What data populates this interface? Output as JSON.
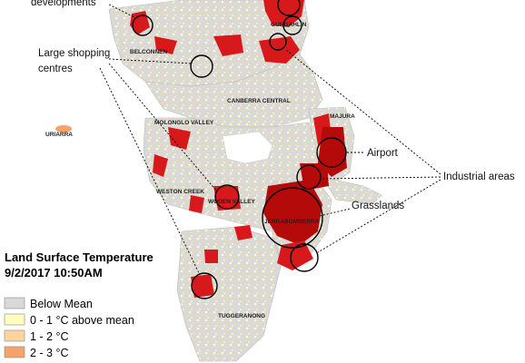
{
  "colors": {
    "below_mean": "#d9d9d9",
    "c0_1": "#ffffbe",
    "c1_2": "#fdd49e",
    "c2_3": "#f4a36b",
    "hot": "#d7191c",
    "hottest": "#b50a0a"
  },
  "annotations": {
    "new_developments": "developments",
    "shopping": "Large shopping\ncentres",
    "airport": "Airport",
    "industrial": "Industrial areas",
    "grasslands": "Grasslands"
  },
  "districts": {
    "belconnen": "BELCONNEN",
    "gungahlin": "GUNGAHLIN",
    "canberra_central": "CANBERRA CENTRAL",
    "majura": "MAJURA",
    "molonglo": "MOLONGLO VALLEY",
    "uriarra": "URIARRA",
    "weston_creek": "WESTON CREEK",
    "woden": "WODEN VALLEY",
    "jerrabomberra": "JERRABOMBERRA",
    "tuggeranong": "TUGGERANONG"
  },
  "legend": {
    "title_line1": "Land Surface Temperature",
    "title_line2": "9/2/2017 10:50AM",
    "items": [
      {
        "label": "Below Mean",
        "color": "#d9d9d9"
      },
      {
        "label": "0 - 1 °C above mean",
        "color": "#ffffbe"
      },
      {
        "label": "1 - 2 °C",
        "color": "#fdd49e"
      },
      {
        "label": "2 - 3 °C",
        "color": "#f4a36b"
      }
    ]
  }
}
